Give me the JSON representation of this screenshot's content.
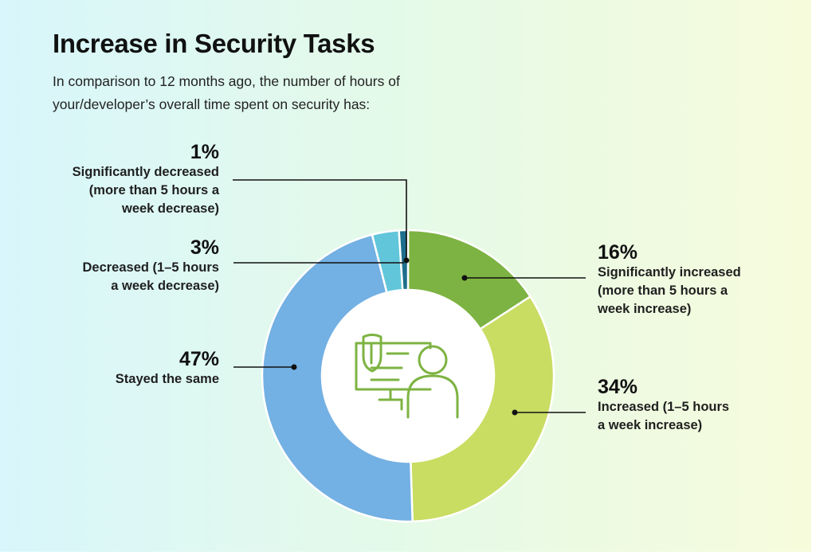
{
  "title": "Increase in Security Tasks",
  "subtitle": "In comparison to 12 months ago, the number of hours of your/developer’s overall time spent on security has:",
  "chart_data": {
    "type": "pie",
    "title": "Increase in Security Tasks",
    "slices": [
      {
        "pct_label": "16%",
        "value": 16,
        "label": "Significantly increased\n(more than 5 hours a\nweek increase)",
        "color": "#7db342"
      },
      {
        "pct_label": "34%",
        "value": 34,
        "label": "Increased (1–5 hours\na week increase)",
        "color": "#c8dd62"
      },
      {
        "pct_label": "47%",
        "value": 47,
        "label": "Stayed the same",
        "color": "#73b0e3"
      },
      {
        "pct_label": "3%",
        "value": 3,
        "label": "Decreased (1–5 hours\na week decrease)",
        "color": "#62c6da"
      },
      {
        "pct_label": "1%",
        "value": 1,
        "label": "Significantly decreased\n(more than 5 hours a\nweek decrease)",
        "color": "#1e6e8c"
      }
    ],
    "center_icon": "security-developer-icon"
  }
}
